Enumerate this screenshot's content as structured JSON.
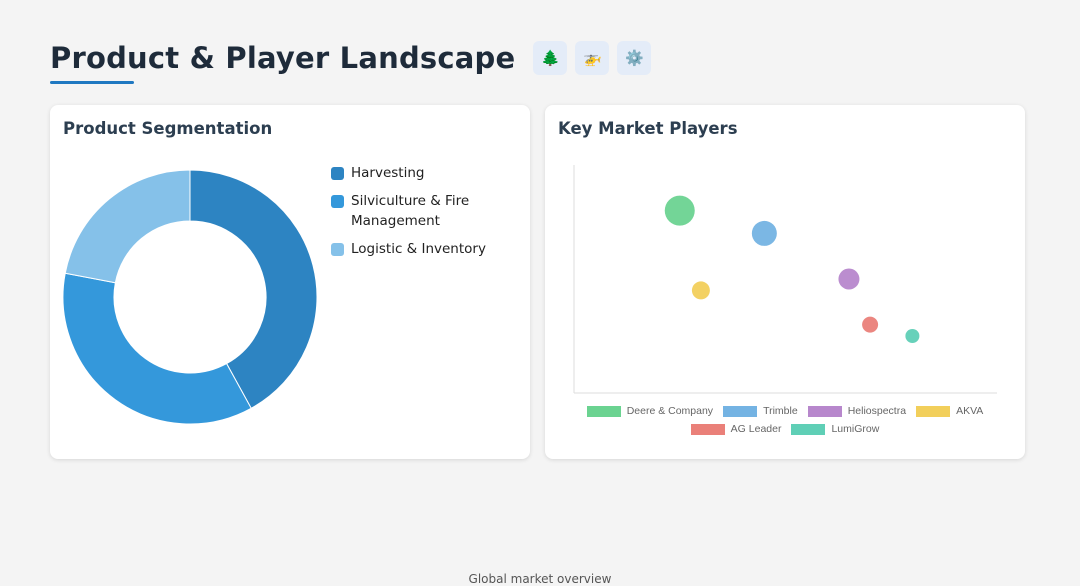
{
  "page": {
    "title": "Product & Player Landscape",
    "icons": [
      "tree-icon",
      "helicopter-icon",
      "gear-icon"
    ],
    "footer_text": "Global market overview"
  },
  "colors": {
    "accent": "#1f78c1",
    "harvesting": "#2d84c2",
    "silviculture": "#3498db",
    "logistic": "#85c1e9"
  },
  "cards": {
    "segmentation_title": "Product Segmentation",
    "players_title": "Key Market Players"
  },
  "chart_data": [
    {
      "type": "pie",
      "donut": true,
      "title": "Product Segmentation",
      "labels": [
        "Harvesting",
        "Silviculture & Fire Management",
        "Logistic & Inventory"
      ],
      "values": [
        42,
        36,
        22
      ],
      "colors": [
        "#2d84c2",
        "#3498db",
        "#85c1e9"
      ],
      "legend": "right"
    },
    {
      "type": "scatter",
      "bubble": true,
      "title": "Key Market Players",
      "grid": false,
      "legend": "bottom",
      "xlim": [
        0,
        100
      ],
      "ylim": [
        0,
        100
      ],
      "series": [
        {
          "name": "Deere & Company",
          "color": "#6bd391",
          "points": [
            {
              "x": 25,
              "y": 80,
              "r": 15
            }
          ]
        },
        {
          "name": "Trimble",
          "color": "#74b3e3",
          "points": [
            {
              "x": 45,
              "y": 70,
              "r": 12.5
            }
          ]
        },
        {
          "name": "Heliospectra",
          "color": "#b787cc",
          "points": [
            {
              "x": 65,
              "y": 50,
              "r": 10.5
            }
          ]
        },
        {
          "name": "AKVA",
          "color": "#f2cf5b",
          "points": [
            {
              "x": 30,
              "y": 45,
              "r": 9
            }
          ]
        },
        {
          "name": "AG Leader",
          "color": "#ea8079",
          "points": [
            {
              "x": 70,
              "y": 30,
              "r": 8
            }
          ]
        },
        {
          "name": "LumiGrow",
          "color": "#5fcfb6",
          "points": [
            {
              "x": 80,
              "y": 25,
              "r": 7
            }
          ]
        }
      ]
    }
  ]
}
